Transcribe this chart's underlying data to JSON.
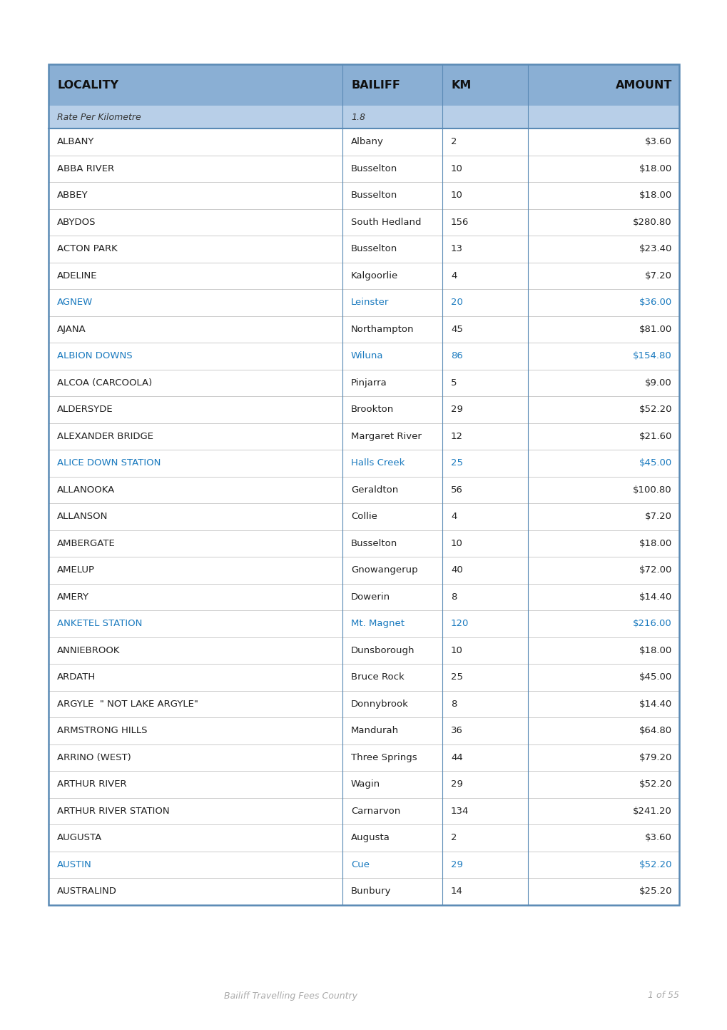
{
  "footer_left": "Bailiff Travelling Fees Country",
  "footer_right": "1 of 55",
  "header_bg_color": "#8aafd4",
  "subheader_bg_color": "#b8cfe8",
  "highlight_color": "#1a7abf",
  "border_color": "#5a8ab5",
  "light_border_color": "#b0b8c8",
  "columns": [
    "LOCALITY",
    "BAILIFF",
    "KM",
    "AMOUNT"
  ],
  "subheader": [
    "Rate Per Kilometre",
    "1.8",
    "",
    ""
  ],
  "rows": [
    [
      "ALBANY",
      "Albany",
      "2",
      "$3.60",
      false
    ],
    [
      "ABBA RIVER",
      "Busselton",
      "10",
      "$18.00",
      false
    ],
    [
      "ABBEY",
      "Busselton",
      "10",
      "$18.00",
      false
    ],
    [
      "ABYDOS",
      "South Hedland",
      "156",
      "$280.80",
      false
    ],
    [
      "ACTON PARK",
      "Busselton",
      "13",
      "$23.40",
      false
    ],
    [
      "ADELINE",
      "Kalgoorlie",
      "4",
      "$7.20",
      false
    ],
    [
      "AGNEW",
      "Leinster",
      "20",
      "$36.00",
      true
    ],
    [
      "AJANA",
      "Northampton",
      "45",
      "$81.00",
      false
    ],
    [
      "ALBION DOWNS",
      "Wiluna",
      "86",
      "$154.80",
      true
    ],
    [
      "ALCOA (CARCOOLA)",
      "Pinjarra",
      "5",
      "$9.00",
      false
    ],
    [
      "ALDERSYDE",
      "Brookton",
      "29",
      "$52.20",
      false
    ],
    [
      "ALEXANDER BRIDGE",
      "Margaret River",
      "12",
      "$21.60",
      false
    ],
    [
      "ALICE DOWN STATION",
      "Halls Creek",
      "25",
      "$45.00",
      true
    ],
    [
      "ALLANOOKA",
      "Geraldton",
      "56",
      "$100.80",
      false
    ],
    [
      "ALLANSON",
      "Collie",
      "4",
      "$7.20",
      false
    ],
    [
      "AMBERGATE",
      "Busselton",
      "10",
      "$18.00",
      false
    ],
    [
      "AMELUP",
      "Gnowangerup",
      "40",
      "$72.00",
      false
    ],
    [
      "AMERY",
      "Dowerin",
      "8",
      "$14.40",
      false
    ],
    [
      "ANKETEL STATION",
      "Mt. Magnet",
      "120",
      "$216.00",
      true
    ],
    [
      "ANNIEBROOK",
      "Dunsborough",
      "10",
      "$18.00",
      false
    ],
    [
      "ARDATH",
      "Bruce Rock",
      "25",
      "$45.00",
      false
    ],
    [
      "ARGYLE  \" NOT LAKE ARGYLE\"",
      "Donnybrook",
      "8",
      "$14.40",
      false
    ],
    [
      "ARMSTRONG HILLS",
      "Mandurah",
      "36",
      "$64.80",
      false
    ],
    [
      "ARRINO (WEST)",
      "Three Springs",
      "44",
      "$79.20",
      false
    ],
    [
      "ARTHUR RIVER",
      "Wagin",
      "29",
      "$52.20",
      false
    ],
    [
      "ARTHUR RIVER STATION",
      "Carnarvon",
      "134",
      "$241.20",
      false
    ],
    [
      "AUGUSTA",
      "Augusta",
      "2",
      "$3.60",
      false
    ],
    [
      "AUSTIN",
      "Cue",
      "29",
      "$52.20",
      true
    ],
    [
      "AUSTRALIND",
      "Bunbury",
      "14",
      "$25.20",
      false
    ]
  ]
}
